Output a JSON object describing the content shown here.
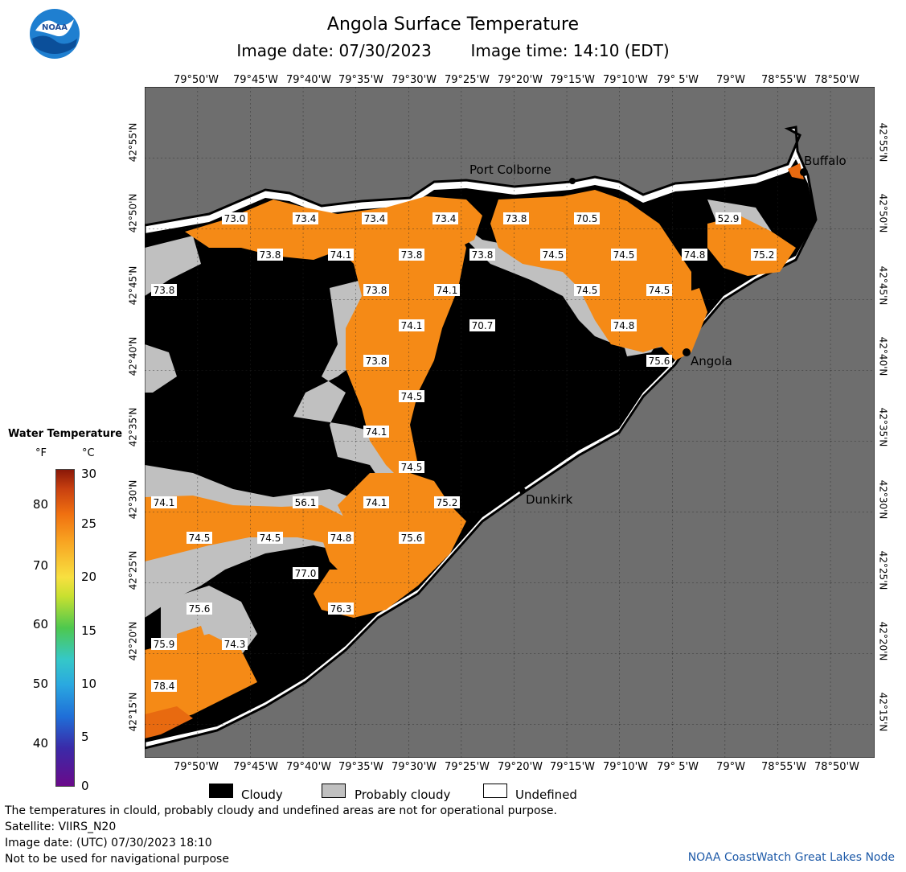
{
  "header": {
    "title": "Angola Surface Temperature",
    "image_date": "Image date: 07/30/2023",
    "image_time": "Image time: 14:10 (EDT)",
    "logo_text": "NOAA"
  },
  "axes": {
    "lon_labels": [
      "79°50'W",
      "79°45'W",
      "79°40'W",
      "79°35'W",
      "79°30'W",
      "79°25'W",
      "79°20'W",
      "79°15'W",
      "79°10'W",
      "79° 5'W",
      "79°W",
      "78°55'W",
      "78°50'W"
    ],
    "lat_labels": [
      "42°55'N",
      "42°50'N",
      "42°45'N",
      "42°40'N",
      "42°35'N",
      "42°30'N",
      "42°25'N",
      "42°20'N",
      "42°15'N"
    ]
  },
  "cities": {
    "port_colborne": "Port Colborne",
    "buffalo": "Buffalo",
    "angola": "Angola",
    "dunkirk": "Dunkirk"
  },
  "temperature_labels": [
    {
      "text": "73.0"
    },
    {
      "text": "73.4"
    },
    {
      "text": "73.4"
    },
    {
      "text": "73.4"
    },
    {
      "text": "73.8"
    },
    {
      "text": "70.5"
    },
    {
      "text": "52.9"
    },
    {
      "text": "73.8"
    },
    {
      "text": "74.1"
    },
    {
      "text": "73.8"
    },
    {
      "text": "73.8"
    },
    {
      "text": "74.5"
    },
    {
      "text": "74.5"
    },
    {
      "text": "74.8"
    },
    {
      "text": "75.2"
    },
    {
      "text": "73.8"
    },
    {
      "text": "73.8"
    },
    {
      "text": "74.1"
    },
    {
      "text": "74.5"
    },
    {
      "text": "74.5"
    },
    {
      "text": "74.1"
    },
    {
      "text": "70.7"
    },
    {
      "text": "74.8"
    },
    {
      "text": "73.8"
    },
    {
      "text": "75.6"
    },
    {
      "text": "74.5"
    },
    {
      "text": "74.1"
    },
    {
      "text": "74.5"
    },
    {
      "text": "74.1"
    },
    {
      "text": "56.1"
    },
    {
      "text": "74.1"
    },
    {
      "text": "75.2"
    },
    {
      "text": "74.5"
    },
    {
      "text": "74.5"
    },
    {
      "text": "74.8"
    },
    {
      "text": "75.6"
    },
    {
      "text": "77.0"
    },
    {
      "text": "76.3"
    },
    {
      "text": "75.6"
    },
    {
      "text": "75.9"
    },
    {
      "text": "74.3"
    },
    {
      "text": "78.4"
    }
  ],
  "legend": {
    "title": "Water Temperature",
    "unit_f": "°F",
    "unit_c": "°C",
    "ticks_f": [
      "80",
      "70",
      "60",
      "50",
      "40"
    ],
    "ticks_c": [
      "30",
      "25",
      "20",
      "15",
      "10",
      "5",
      "0"
    ],
    "colormap_hex": [
      "#6a0a8a",
      "#1f6fd8",
      "#35c8c8",
      "#4ec84e",
      "#f8e040",
      "#f8a020",
      "#f07010",
      "#8a1808"
    ]
  },
  "key": {
    "cloudy": "Cloudy",
    "probably_cloudy": "Probably cloudy",
    "undefined": "Undefined",
    "colors": {
      "cloudy": "#000000",
      "probably_cloudy": "#c0c0c0",
      "undefined": "#ffffff",
      "land": "#6e6e6e",
      "water": "#f58a16"
    }
  },
  "footer": {
    "disclaimer": "The temperatures in clould, probably cloudy and undefined areas are not for operational purpose.",
    "satellite": "Satellite: VIIRS_N20",
    "utc_date": "Image date: (UTC) 07/30/2023  18:10",
    "nav_warning": "Not to be used for navigational purpose",
    "credit": "NOAA CoastWatch Great Lakes Node"
  }
}
